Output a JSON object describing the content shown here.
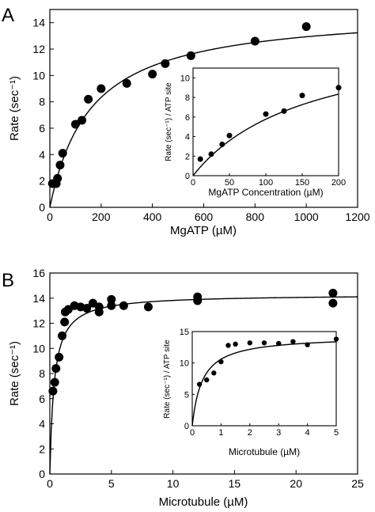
{
  "chart_data": [
    {
      "panel": "A",
      "type": "scatter",
      "xlabel": "MgATP (µM)",
      "ylabel": "Rate (sec⁻¹)",
      "xlim": [
        0,
        1200
      ],
      "ylim": [
        0,
        15
      ],
      "xticks": [
        0,
        200,
        400,
        600,
        800,
        1000,
        1200
      ],
      "yticks": [
        0,
        2,
        4,
        6,
        8,
        10,
        12,
        14
      ],
      "points": [
        {
          "x": 10,
          "y": 1.8
        },
        {
          "x": 25,
          "y": 1.8
        },
        {
          "x": 30,
          "y": 2.2
        },
        {
          "x": 40,
          "y": 3.2
        },
        {
          "x": 50,
          "y": 4.1
        },
        {
          "x": 100,
          "y": 6.3
        },
        {
          "x": 125,
          "y": 6.6
        },
        {
          "x": 150,
          "y": 8.2
        },
        {
          "x": 200,
          "y": 9.0
        },
        {
          "x": 300,
          "y": 9.4
        },
        {
          "x": 400,
          "y": 10.1
        },
        {
          "x": 450,
          "y": 10.9
        },
        {
          "x": 550,
          "y": 11.5
        },
        {
          "x": 800,
          "y": 12.6
        },
        {
          "x": 1000,
          "y": 13.7
        }
      ],
      "fit": {
        "model": "michaelis-menten",
        "vmax": 15.0,
        "km": 160
      },
      "inset": {
        "xlabel": "MgATP Concentration (µM)",
        "ylabel": "Rate (sec⁻¹) / ATP site",
        "xlim": [
          0,
          200
        ],
        "ylim": [
          0,
          11
        ],
        "xticks": [
          0,
          50,
          100,
          150,
          200
        ],
        "yticks": [
          0,
          2,
          4,
          6,
          8,
          10
        ],
        "points": [
          {
            "x": 10,
            "y": 1.7
          },
          {
            "x": 25,
            "y": 2.2
          },
          {
            "x": 40,
            "y": 3.2
          },
          {
            "x": 50,
            "y": 4.1
          },
          {
            "x": 100,
            "y": 6.3
          },
          {
            "x": 125,
            "y": 6.6
          },
          {
            "x": 150,
            "y": 8.2
          },
          {
            "x": 200,
            "y": 9.0
          }
        ],
        "fit": {
          "model": "michaelis-menten",
          "vmax": 15.0,
          "km": 160
        }
      }
    },
    {
      "panel": "B",
      "type": "scatter",
      "xlabel": "Microtubule (µM)",
      "ylabel": "Rate (sec⁻¹)",
      "xlim": [
        0,
        25
      ],
      "ylim": [
        0,
        16
      ],
      "xticks": [
        0,
        5,
        10,
        15,
        20,
        25
      ],
      "yticks": [
        0,
        2,
        4,
        6,
        8,
        10,
        12,
        14,
        16
      ],
      "points": [
        {
          "x": 0.25,
          "y": 6.6
        },
        {
          "x": 0.4,
          "y": 7.3
        },
        {
          "x": 0.5,
          "y": 8.4
        },
        {
          "x": 0.75,
          "y": 9.3
        },
        {
          "x": 1.0,
          "y": 11.0
        },
        {
          "x": 1.2,
          "y": 12.1
        },
        {
          "x": 1.25,
          "y": 12.9
        },
        {
          "x": 1.5,
          "y": 13.1
        },
        {
          "x": 2.0,
          "y": 13.4
        },
        {
          "x": 2.5,
          "y": 13.3
        },
        {
          "x": 3.0,
          "y": 13.2
        },
        {
          "x": 3.5,
          "y": 13.6
        },
        {
          "x": 4.0,
          "y": 12.9
        },
        {
          "x": 4.0,
          "y": 13.3
        },
        {
          "x": 5.0,
          "y": 13.9
        },
        {
          "x": 5.0,
          "y": 13.4
        },
        {
          "x": 6.0,
          "y": 13.4
        },
        {
          "x": 8.0,
          "y": 13.3
        },
        {
          "x": 12.0,
          "y": 14.1
        },
        {
          "x": 12.0,
          "y": 13.8
        },
        {
          "x": 23.0,
          "y": 14.4
        },
        {
          "x": 23.0,
          "y": 13.6
        }
      ],
      "fit": {
        "model": "michaelis-menten",
        "vmax": 14.3,
        "km": 0.35
      },
      "inset": {
        "xlabel": "Microtubule (µM)",
        "ylabel": "Rate (sec⁻¹) / ATP site",
        "xlim": [
          0,
          5
        ],
        "ylim": [
          0,
          15
        ],
        "xticks": [
          0,
          1,
          2,
          3,
          4,
          5
        ],
        "yticks": [
          0,
          5,
          10,
          15
        ],
        "points": [
          {
            "x": 0.25,
            "y": 6.6
          },
          {
            "x": 0.5,
            "y": 7.3
          },
          {
            "x": 0.75,
            "y": 8.4
          },
          {
            "x": 1.0,
            "y": 10.2
          },
          {
            "x": 1.25,
            "y": 12.8
          },
          {
            "x": 1.5,
            "y": 13.0
          },
          {
            "x": 2.0,
            "y": 13.2
          },
          {
            "x": 2.5,
            "y": 13.2
          },
          {
            "x": 3.0,
            "y": 13.1
          },
          {
            "x": 3.5,
            "y": 13.4
          },
          {
            "x": 4.0,
            "y": 12.9
          },
          {
            "x": 5.0,
            "y": 13.8
          }
        ],
        "fit": {
          "model": "michaelis-menten",
          "vmax": 14.3,
          "km": 0.35
        }
      }
    }
  ]
}
